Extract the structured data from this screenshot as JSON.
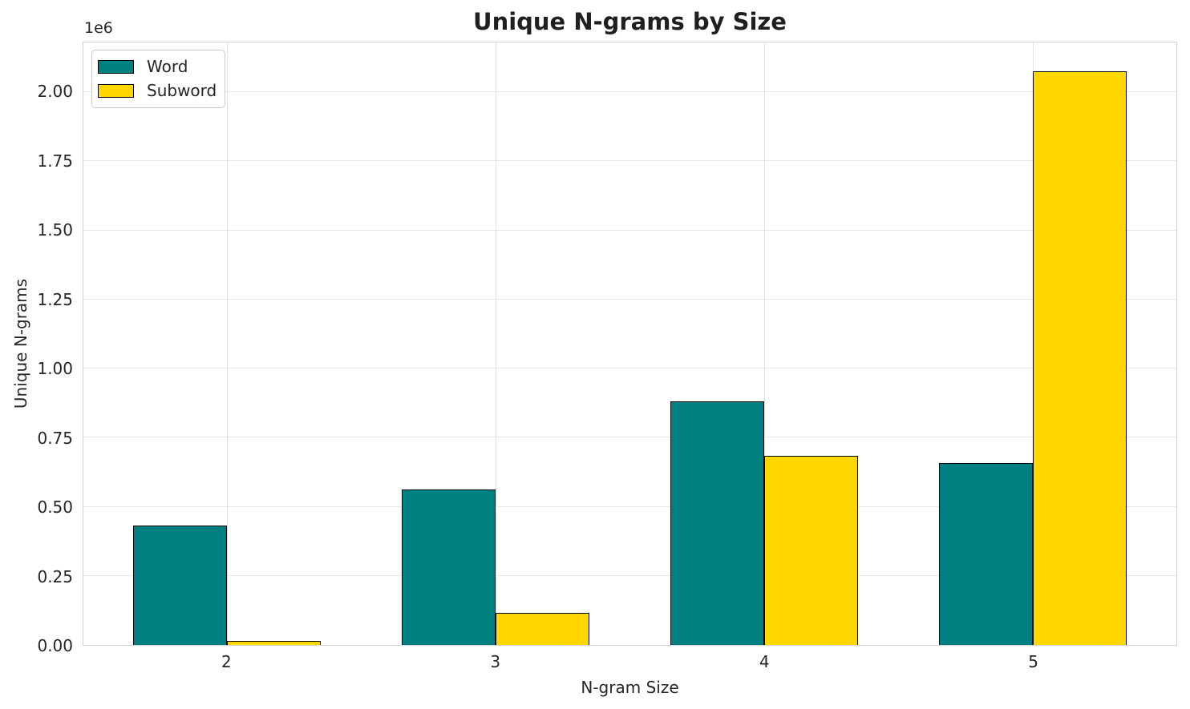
{
  "title": "Unique N-grams by Size",
  "axes": {
    "xlabel": "N-gram Size",
    "ylabel": "Unique N-grams",
    "offset_text": "1e6",
    "x_tick_labels": [
      "2",
      "3",
      "4",
      "5"
    ],
    "y_tick_labels": [
      "0.00",
      "0.25",
      "0.50",
      "0.75",
      "1.00",
      "1.25",
      "1.50",
      "1.75",
      "2.00"
    ]
  },
  "legend": {
    "position": "upper left",
    "items": [
      {
        "label": "Word",
        "color": "#008080"
      },
      {
        "label": "Subword",
        "color": "#FFD700"
      }
    ]
  },
  "chart_data": {
    "type": "bar",
    "title": "Unique N-grams by Size",
    "xlabel": "N-gram Size",
    "ylabel": "Unique N-grams",
    "categories": [
      "2",
      "3",
      "4",
      "5"
    ],
    "series": [
      {
        "name": "Word",
        "color": "#008080",
        "values": [
          431000,
          562000,
          881000,
          657000
        ]
      },
      {
        "name": "Subword",
        "color": "#FFD700",
        "values": [
          15000,
          117000,
          684000,
          2076000
        ]
      }
    ],
    "ylim": [
      0,
      2180000
    ],
    "yticks": {
      "values": [
        0,
        250000,
        500000,
        750000,
        1000000,
        1250000,
        1500000,
        1750000,
        2000000
      ],
      "labels": [
        "0.00",
        "0.25",
        "0.50",
        "0.75",
        "1.00",
        "1.25",
        "1.50",
        "1.75",
        "2.00"
      ]
    },
    "y_offset_label": "1e6",
    "grid": true,
    "legend_position": "upper left",
    "bar_edge_color": "#000000"
  },
  "colors": {
    "background": "#ffffff",
    "text": "#262626",
    "grid": "#e5e5e5",
    "spine": "#d2d2d2",
    "word": "#008080",
    "subword": "#FFD700"
  }
}
